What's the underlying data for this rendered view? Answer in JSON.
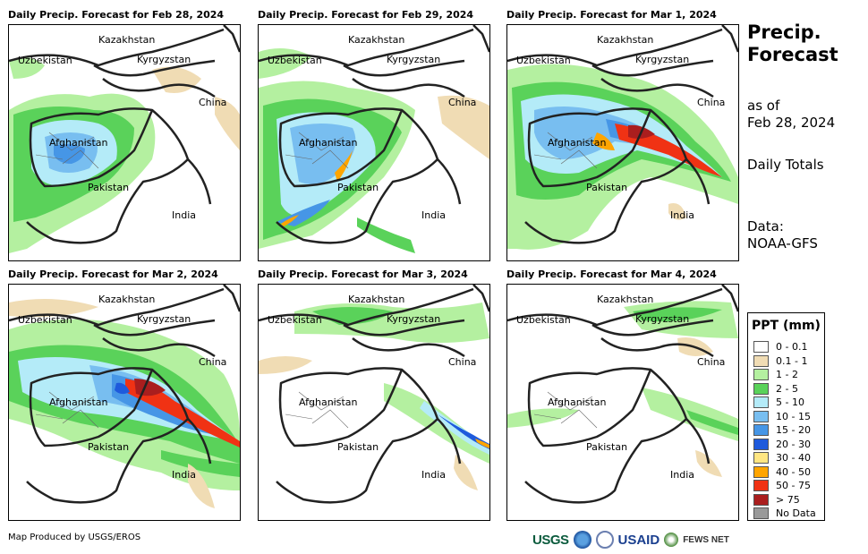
{
  "panels": [
    {
      "title": "Daily Precip. Forecast for Feb 28, 2024"
    },
    {
      "title": "Daily Precip. Forecast for Feb 29, 2024"
    },
    {
      "title": "Daily Precip. Forecast for Mar 1, 2024"
    },
    {
      "title": "Daily Precip. Forecast for Mar 2, 2024"
    },
    {
      "title": "Daily Precip. Forecast for Mar 3, 2024"
    },
    {
      "title": "Daily Precip. Forecast for Mar 4, 2024"
    }
  ],
  "places": {
    "kazakhstan": "Kazakhstan",
    "uzbekistan": "Uzbekistan",
    "kyrgyzstan": "Kyrgyzstan",
    "china": "China",
    "afghanistan": "Afghanistan",
    "pakistan": "Pakistan",
    "india": "India"
  },
  "sidebar": {
    "title_line1": "Precip.",
    "title_line2": "Forecast",
    "asof_line1": "as of",
    "asof_line2": "Feb 28, 2024",
    "totals": "Daily Totals",
    "data_line1": "Data:",
    "data_line2": "NOAA-GFS"
  },
  "legend": {
    "title": "PPT (mm)",
    "items": [
      {
        "label": "0 - 0.1",
        "color": "#ffffff"
      },
      {
        "label": "0.1 - 1",
        "color": "#f0dcb4"
      },
      {
        "label": "1 - 2",
        "color": "#b4f0a0"
      },
      {
        "label": "2 - 5",
        "color": "#5ad25a"
      },
      {
        "label": "5 - 10",
        "color": "#b4ebf8"
      },
      {
        "label": "10 - 15",
        "color": "#78bef0"
      },
      {
        "label": "15 - 20",
        "color": "#4696e6"
      },
      {
        "label": "20 - 30",
        "color": "#1e5adc"
      },
      {
        "label": "30 - 40",
        "color": "#ffe682"
      },
      {
        "label": "40 - 50",
        "color": "#ffa500"
      },
      {
        "label": "50 - 75",
        "color": "#f03214"
      },
      {
        "label": "> 75",
        "color": "#aa1e1e"
      },
      {
        "label": "No Data",
        "color": "#999999"
      }
    ]
  },
  "footer": {
    "credit": "Map Produced by USGS/EROS"
  },
  "logos": {
    "usgs": "USGS",
    "usaid": "USAID",
    "fews": "FEWS NET"
  }
}
